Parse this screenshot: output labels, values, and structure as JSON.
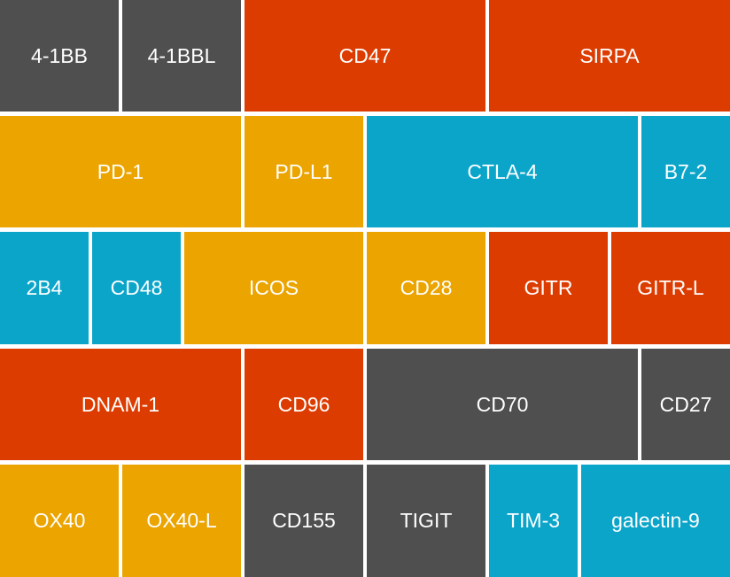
{
  "colors": {
    "gray": "#4f4f4f",
    "red": "#dd3c00",
    "yellow": "#eba400",
    "blue": "#0ba5ca"
  },
  "tiles": [
    {
      "label": "4-1BB",
      "color": "gray"
    },
    {
      "label": "4-1BBL",
      "color": "gray"
    },
    {
      "label": "CD47",
      "color": "red"
    },
    {
      "label": "SIRPA",
      "color": "red"
    },
    {
      "label": "PD-1",
      "color": "yellow"
    },
    {
      "label": "PD-L1",
      "color": "yellow"
    },
    {
      "label": "CTLA-4",
      "color": "blue"
    },
    {
      "label": "B7-2",
      "color": "blue"
    },
    {
      "label": "2B4",
      "color": "blue"
    },
    {
      "label": "CD48",
      "color": "blue"
    },
    {
      "label": "ICOS",
      "color": "yellow"
    },
    {
      "label": "CD28",
      "color": "yellow"
    },
    {
      "label": "GITR",
      "color": "red"
    },
    {
      "label": "GITR-L",
      "color": "red"
    },
    {
      "label": "DNAM-1",
      "color": "red"
    },
    {
      "label": "CD96",
      "color": "red"
    },
    {
      "label": "CD70",
      "color": "gray"
    },
    {
      "label": "CD27",
      "color": "gray"
    },
    {
      "label": "OX40",
      "color": "yellow"
    },
    {
      "label": "OX40-L",
      "color": "yellow"
    },
    {
      "label": "CD155",
      "color": "gray"
    },
    {
      "label": "TIGIT",
      "color": "gray"
    },
    {
      "label": "TIM-3",
      "color": "blue"
    },
    {
      "label": "galectin-9",
      "color": "blue"
    }
  ]
}
